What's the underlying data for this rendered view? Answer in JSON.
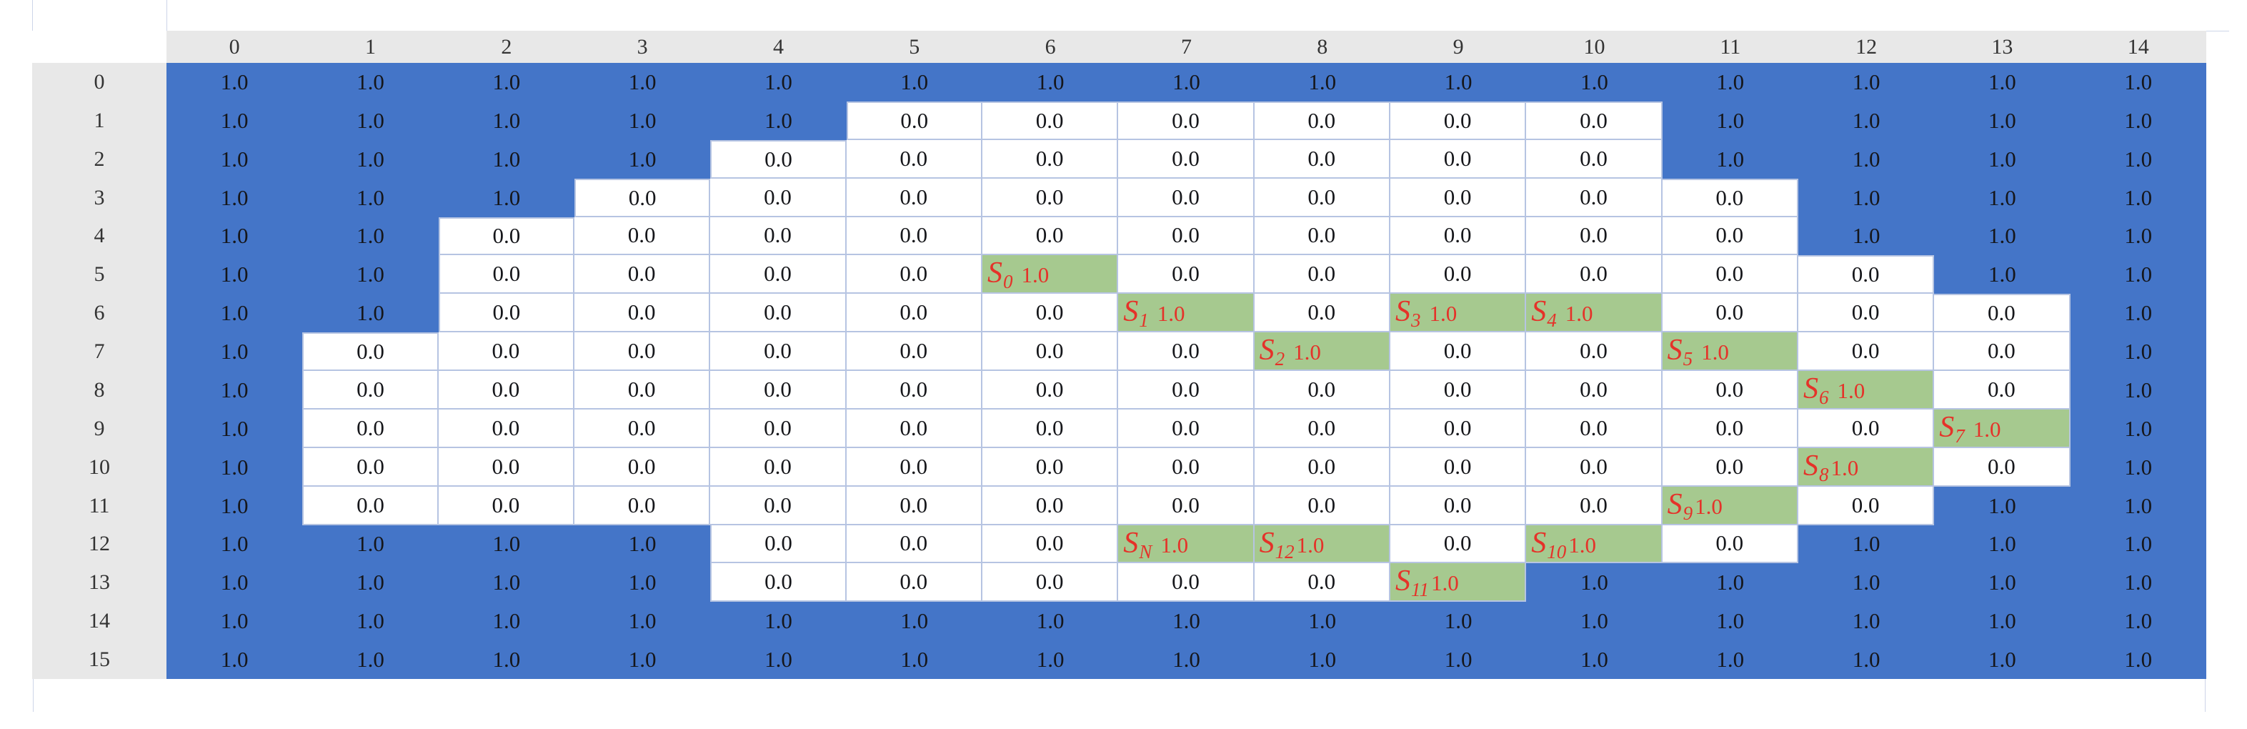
{
  "chart_data": {
    "type": "heatmap",
    "title": "",
    "col_headers": [
      "0",
      "1",
      "2",
      "3",
      "4",
      "5",
      "6",
      "7",
      "8",
      "9",
      "10",
      "11",
      "12",
      "13",
      "14"
    ],
    "row_headers": [
      "0",
      "1",
      "2",
      "3",
      "4",
      "5",
      "6",
      "7",
      "8",
      "9",
      "10",
      "11",
      "12",
      "13",
      "14",
      "15"
    ],
    "cell_text": {
      "1": "1.0",
      "0": "0.0"
    },
    "state_symbol": "S",
    "matrix": [
      [
        "1",
        "1",
        "1",
        "1",
        "1",
        "1",
        "1",
        "1",
        "1",
        "1",
        "1",
        "1",
        "1",
        "1",
        "1"
      ],
      [
        "1",
        "1",
        "1",
        "1",
        "1",
        "0",
        "0",
        "0",
        "0",
        "0",
        "0",
        "1",
        "1",
        "1",
        "1"
      ],
      [
        "1",
        "1",
        "1",
        "1",
        "0",
        "0",
        "0",
        "0",
        "0",
        "0",
        "0",
        "1",
        "1",
        "1",
        "1"
      ],
      [
        "1",
        "1",
        "1",
        "0",
        "0",
        "0",
        "0",
        "0",
        "0",
        "0",
        "0",
        "0",
        "1",
        "1",
        "1"
      ],
      [
        "1",
        "1",
        "0",
        "0",
        "0",
        "0",
        "0",
        "0",
        "0",
        "0",
        "0",
        "0",
        "1",
        "1",
        "1"
      ],
      [
        "1",
        "1",
        "0",
        "0",
        "0",
        "0",
        "S0",
        "0",
        "0",
        "0",
        "0",
        "0",
        "0",
        "1",
        "1"
      ],
      [
        "1",
        "1",
        "0",
        "0",
        "0",
        "0",
        "0",
        "S1",
        "0",
        "S3",
        "S4",
        "0",
        "0",
        "0",
        "1"
      ],
      [
        "1",
        "0",
        "0",
        "0",
        "0",
        "0",
        "0",
        "0",
        "S2",
        "0",
        "0",
        "S5",
        "0",
        "0",
        "1"
      ],
      [
        "1",
        "0",
        "0",
        "0",
        "0",
        "0",
        "0",
        "0",
        "0",
        "0",
        "0",
        "0",
        "S6",
        "0",
        "1"
      ],
      [
        "1",
        "0",
        "0",
        "0",
        "0",
        "0",
        "0",
        "0",
        "0",
        "0",
        "0",
        "0",
        "0",
        "S7",
        "1"
      ],
      [
        "1",
        "0",
        "0",
        "0",
        "0",
        "0",
        "0",
        "0",
        "0",
        "0",
        "0",
        "0",
        "S8",
        "0",
        "1"
      ],
      [
        "1",
        "0",
        "0",
        "0",
        "0",
        "0",
        "0",
        "0",
        "0",
        "0",
        "0",
        "S9",
        "0",
        "1",
        "1"
      ],
      [
        "1",
        "1",
        "1",
        "1",
        "0",
        "0",
        "0",
        "SN",
        "S12",
        "0",
        "S10",
        "0",
        "1",
        "1",
        "1"
      ],
      [
        "1",
        "1",
        "1",
        "1",
        "0",
        "0",
        "0",
        "0",
        "0",
        "S11",
        "1",
        "1",
        "1",
        "1",
        "1"
      ],
      [
        "1",
        "1",
        "1",
        "1",
        "1",
        "1",
        "1",
        "1",
        "1",
        "1",
        "1",
        "1",
        "1",
        "1",
        "1"
      ],
      [
        "1",
        "1",
        "1",
        "1",
        "1",
        "1",
        "1",
        "1",
        "1",
        "1",
        "1",
        "1",
        "1",
        "1",
        "1"
      ]
    ],
    "annotations": {
      "S0": {
        "sub": "0",
        "value": "1.0",
        "gap": true
      },
      "S1": {
        "sub": "1",
        "value": "1.0",
        "gap": true
      },
      "S2": {
        "sub": "2",
        "value": "1.0",
        "gap": true
      },
      "S3": {
        "sub": "3",
        "value": "1.0",
        "gap": true
      },
      "S4": {
        "sub": "4",
        "value": "1.0",
        "gap": true
      },
      "S5": {
        "sub": "5",
        "value": "1.0",
        "gap": true
      },
      "S6": {
        "sub": "6",
        "value": "1.0",
        "gap": true
      },
      "S7": {
        "sub": "7",
        "value": "1.0",
        "gap": true
      },
      "S8": {
        "sub": "8",
        "value": "1.0",
        "gap": false
      },
      "S9": {
        "sub": "9",
        "value": "1.0",
        "gap": false
      },
      "SN": {
        "sub": "N",
        "value": "1.0",
        "gap": true
      },
      "S10": {
        "sub": "10",
        "value": "1.0",
        "gap": false
      },
      "S11": {
        "sub": "11",
        "value": "1.0",
        "gap": false
      },
      "S12": {
        "sub": "12",
        "value": "1.0",
        "gap": false
      }
    },
    "colors": {
      "one_cell_bg": "#4475c8",
      "zero_cell_bg": "#ffffff",
      "state_cell_bg": "#a6c98f",
      "state_text": "#e53229",
      "header_bg": "#e8e8e8",
      "header_text": "#333333",
      "cell_text": "#15161a",
      "grid_border": "#b6c4e2",
      "faint_line": "#cdd5e8"
    },
    "legend_position": "none",
    "grid": true
  }
}
